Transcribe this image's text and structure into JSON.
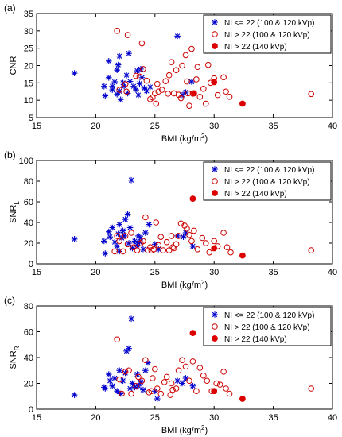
{
  "chart_data": [
    {
      "type": "scatter",
      "panel_label": "(a)",
      "ylabel": "CNR",
      "ylabel_sub": "",
      "xlabel": "BMI (kg/m",
      "xlabel_sup": "2",
      "xlabel_end": ")",
      "xlim": [
        15,
        40
      ],
      "ylim": [
        5,
        35
      ],
      "xticks": [
        "15",
        "20",
        "25",
        "30",
        "35",
        "40"
      ],
      "yticks": [
        "5",
        "10",
        "15",
        "20",
        "25",
        "30",
        "35"
      ],
      "grid": false,
      "legend_position": "top-right",
      "series": [
        {
          "name": "NI <= 22 (100 & 120 kVp)",
          "marker": "star",
          "color": "#0000cc",
          "points": [
            [
              18.2,
              17.8
            ],
            [
              20.7,
              14
            ],
            [
              20.8,
              11.3
            ],
            [
              21.1,
              21.3
            ],
            [
              21.1,
              16.5
            ],
            [
              21.4,
              14
            ],
            [
              21.4,
              13
            ],
            [
              21.6,
              15.3
            ],
            [
              21.8,
              18.7
            ],
            [
              21.8,
              11.7
            ],
            [
              21.9,
              20.2
            ],
            [
              22,
              22.7
            ],
            [
              22,
              12.6
            ],
            [
              22.1,
              10.2
            ],
            [
              22.3,
              15
            ],
            [
              22.4,
              14
            ],
            [
              22.6,
              17.2
            ],
            [
              22.7,
              12
            ],
            [
              22.8,
              23.5
            ],
            [
              22.9,
              15.4
            ],
            [
              23.2,
              14
            ],
            [
              23.4,
              13
            ],
            [
              23.5,
              18.5
            ],
            [
              23.6,
              11.5
            ],
            [
              23.7,
              14.8
            ],
            [
              23.8,
              19
            ],
            [
              23.9,
              16.5
            ],
            [
              24.1,
              13.5
            ],
            [
              24.3,
              12.7
            ],
            [
              24.6,
              13.8
            ],
            [
              26.9,
              28.5
            ],
            [
              27.3,
              11.5
            ],
            [
              27.6,
              12.3
            ],
            [
              28.1,
              15.3
            ]
          ]
        },
        {
          "name": "NI > 22 (100 & 120 kVp)",
          "marker": "open-circle",
          "color": "#cc0000",
          "points": [
            [
              21.8,
              30
            ],
            [
              22,
              13
            ],
            [
              22.5,
              14.6
            ],
            [
              22.6,
              12.5
            ],
            [
              22.7,
              28.8
            ],
            [
              23.4,
              17
            ],
            [
              23.7,
              16.8
            ],
            [
              23.9,
              26.4
            ],
            [
              24,
              19
            ],
            [
              24.3,
              15.6
            ],
            [
              24.6,
              10.3
            ],
            [
              24.8,
              10.8
            ],
            [
              25,
              12
            ],
            [
              25.1,
              9
            ],
            [
              25.2,
              14.7
            ],
            [
              25.3,
              12.5
            ],
            [
              25.6,
              13
            ],
            [
              25.9,
              15.5
            ],
            [
              26.1,
              11.9
            ],
            [
              26.2,
              17.2
            ],
            [
              26.4,
              21
            ],
            [
              26.6,
              12
            ],
            [
              26.8,
              18.7
            ],
            [
              27,
              11.6
            ],
            [
              27.2,
              10.6
            ],
            [
              27.3,
              20
            ],
            [
              27.6,
              23
            ],
            [
              27.7,
              15.4
            ],
            [
              27.8,
              12
            ],
            [
              27.9,
              8.4
            ],
            [
              28.2,
              11.9
            ],
            [
              28.5,
              16
            ],
            [
              28.6,
              19.6
            ],
            [
              28.8,
              11
            ],
            [
              29.1,
              13.3
            ],
            [
              29.3,
              9
            ],
            [
              29.7,
              15
            ],
            [
              30,
              16.3
            ],
            [
              30.3,
              11.5
            ],
            [
              30.8,
              16.6
            ],
            [
              31,
              12.5
            ],
            [
              31.3,
              11
            ],
            [
              38.2,
              11.8
            ],
            [
              28.1,
              24.8
            ],
            [
              29.5,
              20.2
            ]
          ]
        },
        {
          "name": "NI > 22 (140 kVp)",
          "marker": "filled-circle",
          "color": "#dd0000",
          "points": [
            [
              30,
              15.2
            ],
            [
              28.3,
              12
            ],
            [
              32.4,
              9
            ]
          ]
        }
      ]
    },
    {
      "type": "scatter",
      "panel_label": "(b)",
      "ylabel": "SNR",
      "ylabel_sub": "L",
      "xlabel": "BMI (kg/m",
      "xlabel_sup": "2",
      "xlabel_end": ")",
      "xlim": [
        15,
        40
      ],
      "ylim": [
        0,
        100
      ],
      "xticks": [
        "15",
        "20",
        "25",
        "30",
        "35",
        "40"
      ],
      "yticks": [
        "0",
        "20",
        "40",
        "60",
        "80",
        "100"
      ],
      "grid": false,
      "legend_position": "top-right",
      "series": [
        {
          "name": "NI <= 22 (100 & 120 kVp)",
          "marker": "star",
          "color": "#0000cc",
          "points": [
            [
              18.2,
              24
            ],
            [
              20.7,
              22
            ],
            [
              20.8,
              10
            ],
            [
              21.1,
              31
            ],
            [
              21.2,
              26
            ],
            [
              21.4,
              35
            ],
            [
              21.6,
              21
            ],
            [
              21.8,
              17
            ],
            [
              21.9,
              29
            ],
            [
              22,
              38
            ],
            [
              22,
              12
            ],
            [
              22.2,
              25
            ],
            [
              22.3,
              32
            ],
            [
              22.4,
              27
            ],
            [
              22.5,
              43
            ],
            [
              22.7,
              48
            ],
            [
              22.8,
              20
            ],
            [
              22.9,
              35
            ],
            [
              23,
              81
            ],
            [
              23.1,
              15
            ],
            [
              23.3,
              22
            ],
            [
              23.5,
              18
            ],
            [
              23.6,
              27
            ],
            [
              23.7,
              21
            ],
            [
              23.8,
              25
            ],
            [
              24,
              14
            ],
            [
              24.2,
              30
            ],
            [
              24.5,
              38
            ],
            [
              25,
              19
            ],
            [
              25.3,
              14
            ],
            [
              27.4,
              26
            ],
            [
              27.6,
              30
            ],
            [
              28.2,
              17
            ],
            [
              26.9,
              27
            ]
          ]
        },
        {
          "name": "NI > 22 (100 & 120 kVp)",
          "marker": "open-circle",
          "color": "#cc0000",
          "points": [
            [
              21.6,
              12
            ],
            [
              21.8,
              27
            ],
            [
              22,
              22
            ],
            [
              22.3,
              12
            ],
            [
              22.5,
              27
            ],
            [
              22.7,
              19
            ],
            [
              23,
              30
            ],
            [
              23.2,
              16
            ],
            [
              23.5,
              13
            ],
            [
              23.8,
              20
            ],
            [
              24,
              22
            ],
            [
              24.2,
              45
            ],
            [
              24.4,
              13
            ],
            [
              24.6,
              16
            ],
            [
              24.9,
              14
            ],
            [
              25.1,
              40
            ],
            [
              25.3,
              18
            ],
            [
              25.5,
              26
            ],
            [
              25.7,
              13
            ],
            [
              26,
              21
            ],
            [
              26.2,
              13
            ],
            [
              26.4,
              27
            ],
            [
              26.6,
              15
            ],
            [
              26.8,
              19
            ],
            [
              27,
              27
            ],
            [
              27.2,
              39
            ],
            [
              27.5,
              37
            ],
            [
              27.7,
              34
            ],
            [
              27.9,
              28
            ],
            [
              28.1,
              22
            ],
            [
              28.3,
              32
            ],
            [
              28.6,
              14
            ],
            [
              29,
              25
            ],
            [
              29.3,
              20
            ],
            [
              29.6,
              11
            ],
            [
              30,
              22
            ],
            [
              30.3,
              17
            ],
            [
              30.8,
              30
            ],
            [
              31.1,
              16
            ],
            [
              31.4,
              11
            ],
            [
              38.2,
              13
            ],
            [
              24.7,
              13
            ],
            [
              26.5,
              16
            ]
          ]
        },
        {
          "name": "NI > 22 (140 kVp)",
          "marker": "filled-circle",
          "color": "#dd0000",
          "points": [
            [
              28.2,
              63
            ],
            [
              30,
              15
            ],
            [
              32.4,
              8
            ]
          ]
        }
      ]
    },
    {
      "type": "scatter",
      "panel_label": "(c)",
      "ylabel": "SNR",
      "ylabel_sub": "R",
      "xlabel": "BMI (kg/m",
      "xlabel_sup": "2",
      "xlabel_end": ")",
      "xlim": [
        15,
        40
      ],
      "ylim": [
        0,
        80
      ],
      "xticks": [
        "15",
        "20",
        "25",
        "30",
        "35",
        "40"
      ],
      "yticks": [
        "0",
        "20",
        "40",
        "60",
        "80"
      ],
      "grid": false,
      "legend_position": "top-right",
      "series": [
        {
          "name": "NI <= 22 (100 & 120 kVp)",
          "marker": "star",
          "color": "#0000cc",
          "points": [
            [
              18.2,
              11
            ],
            [
              20.7,
              17
            ],
            [
              20.8,
              16
            ],
            [
              21.1,
              27
            ],
            [
              21.2,
              22
            ],
            [
              21.4,
              18
            ],
            [
              21.6,
              24
            ],
            [
              21.8,
              14
            ],
            [
              22,
              30
            ],
            [
              22.1,
              12
            ],
            [
              22.3,
              22
            ],
            [
              22.5,
              28
            ],
            [
              22.6,
              45
            ],
            [
              22.8,
              47
            ],
            [
              23,
              70
            ],
            [
              23.1,
              20
            ],
            [
              23.3,
              17
            ],
            [
              23.5,
              27
            ],
            [
              23.6,
              18
            ],
            [
              23.8,
              21
            ],
            [
              24,
              15
            ],
            [
              24.2,
              30
            ],
            [
              24.4,
              36
            ],
            [
              25.2,
              8
            ],
            [
              27.3,
              20
            ],
            [
              27.6,
              24
            ],
            [
              28.2,
              18
            ],
            [
              26.9,
              22
            ],
            [
              25,
              14
            ],
            [
              22.9,
              16
            ]
          ]
        },
        {
          "name": "NI > 22 (100 & 120 kVp)",
          "marker": "open-circle",
          "color": "#cc0000",
          "points": [
            [
              21.8,
              54
            ],
            [
              22,
              23
            ],
            [
              22.2,
              12
            ],
            [
              22.5,
              29
            ],
            [
              22.8,
              30
            ],
            [
              23,
              12
            ],
            [
              23.4,
              18
            ],
            [
              23.6,
              25
            ],
            [
              23.9,
              22
            ],
            [
              24.2,
              38
            ],
            [
              24.5,
              13
            ],
            [
              24.8,
              24
            ],
            [
              25,
              31
            ],
            [
              25.2,
              16
            ],
            [
              25.5,
              12
            ],
            [
              25.8,
              21
            ],
            [
              26,
              25
            ],
            [
              26.3,
              11
            ],
            [
              26.5,
              15
            ],
            [
              26.8,
              16
            ],
            [
              27,
              30
            ],
            [
              27.3,
              38
            ],
            [
              27.6,
              33
            ],
            [
              27.9,
              22
            ],
            [
              28.2,
              37
            ],
            [
              28.5,
              14
            ],
            [
              28.8,
              32
            ],
            [
              29.1,
              26
            ],
            [
              29.4,
              22
            ],
            [
              29.8,
              14
            ],
            [
              30.2,
              20
            ],
            [
              30.8,
              29
            ],
            [
              31,
              16
            ],
            [
              31.3,
              12
            ],
            [
              38.2,
              16
            ],
            [
              24.7,
              14
            ],
            [
              26.4,
              20
            ],
            [
              30.5,
              19
            ]
          ]
        },
        {
          "name": "NI > 22 (140 kVp)",
          "marker": "filled-circle",
          "color": "#dd0000",
          "points": [
            [
              28.2,
              59
            ],
            [
              30,
              14
            ],
            [
              32.4,
              8
            ]
          ]
        }
      ]
    }
  ]
}
